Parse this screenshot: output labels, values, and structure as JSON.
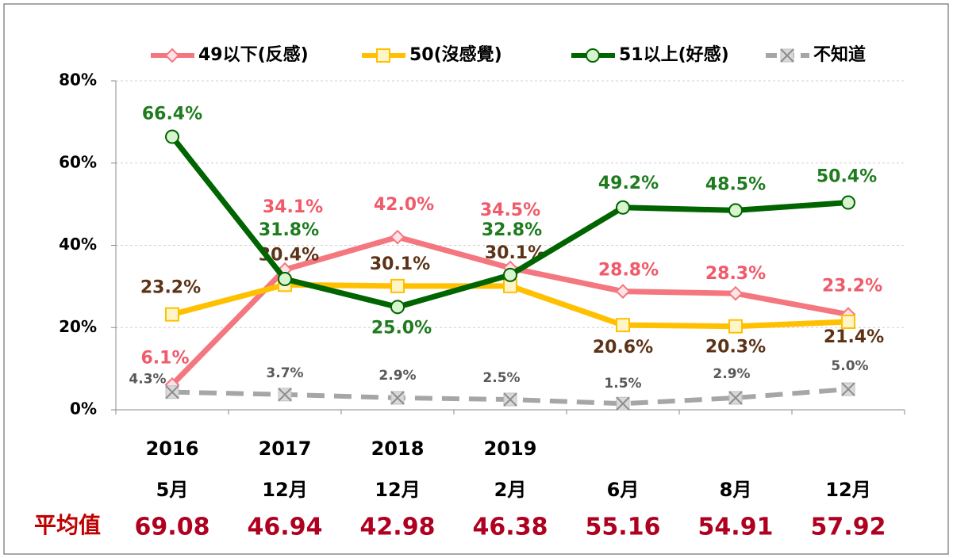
{
  "chart_data": {
    "type": "line",
    "years": [
      "2016",
      "2017",
      "2018",
      "2019",
      null,
      null,
      null
    ],
    "categories": [
      "5月",
      "12月",
      "12月",
      "2月",
      "6月",
      "8月",
      "12月"
    ],
    "average_label": "平均值",
    "averages": [
      69.08,
      46.94,
      42.98,
      46.38,
      55.16,
      54.91,
      57.92
    ],
    "ylim": [
      0,
      80
    ],
    "yticks": [
      {
        "value": 0,
        "label": "0%"
      },
      {
        "value": 20,
        "label": "20%"
      },
      {
        "value": 40,
        "label": "40%"
      },
      {
        "value": 60,
        "label": "60%"
      },
      {
        "value": 80,
        "label": "80%"
      }
    ],
    "grid": true,
    "legend": "top",
    "series": [
      {
        "name": "49以下(反感)",
        "color": "#f4777f",
        "marker_fill": "#fde4e6",
        "label_color": "#f05a6a",
        "marker": "diamond",
        "dashed": false,
        "values": [
          6.1,
          34.1,
          42.0,
          34.5,
          28.8,
          28.3,
          23.2
        ],
        "value_labels": [
          "6.1%",
          "34.1%",
          "42.0%",
          "34.5%",
          "28.8%",
          "28.3%",
          "23.2%"
        ]
      },
      {
        "name": "50(沒感覺)",
        "color": "#ffc000",
        "marker_fill": "#fff5c8",
        "label_color": "#5c3317",
        "marker": "square",
        "dashed": false,
        "values": [
          23.2,
          30.4,
          30.1,
          30.1,
          20.6,
          20.3,
          21.4
        ],
        "value_labels": [
          "23.2%",
          "30.4%",
          "30.1%",
          "30.1%",
          "20.6%",
          "20.3%",
          "21.4%"
        ]
      },
      {
        "name": "51以上(好感)",
        "color": "#006400",
        "marker_fill": "#d8f5d0",
        "label_color": "#1e7b1e",
        "marker": "circle",
        "dashed": false,
        "values": [
          66.4,
          31.8,
          25.0,
          32.8,
          49.2,
          48.5,
          50.4
        ],
        "value_labels": [
          "66.4%",
          "31.8%",
          "25.0%",
          "32.8%",
          "49.2%",
          "48.5%",
          "50.4%"
        ]
      },
      {
        "name": "不知道",
        "color": "#a6a6a6",
        "marker_fill": "#d9d9d9",
        "label_color": "#595959",
        "marker": "x",
        "dashed": true,
        "values": [
          4.3,
          3.7,
          2.9,
          2.5,
          1.5,
          2.9,
          5.0
        ],
        "value_labels": [
          "4.3%",
          "3.7%",
          "2.9%",
          "2.5%",
          "1.5%",
          "2.9%",
          "5.0%"
        ]
      }
    ]
  }
}
